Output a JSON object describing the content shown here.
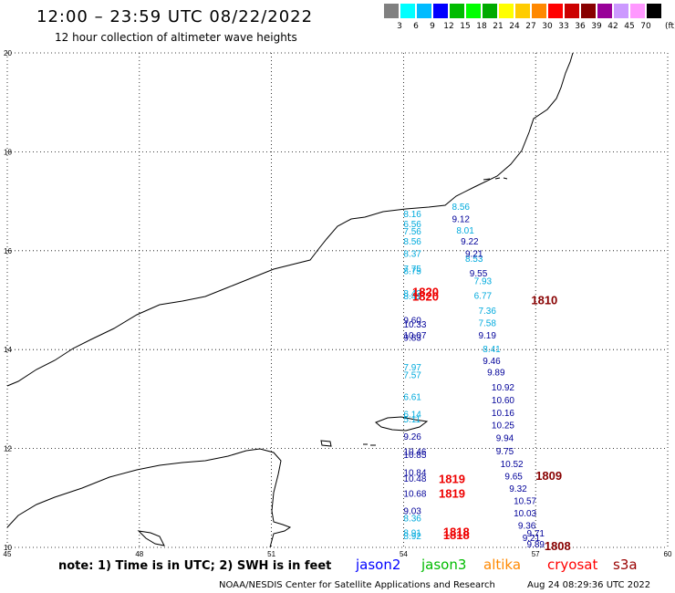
{
  "header": {
    "title": "12:00 – 23:59 UTC 08/22/2022",
    "subtitle": "12 hour collection of altimeter wave heights"
  },
  "colorbar": {
    "colors": [
      "#808080",
      "#00ffff",
      "#00bbff",
      "#0000ff",
      "#00bb00",
      "#00ff00",
      "#00aa00",
      "#ffff00",
      "#ffcc00",
      "#ff8800",
      "#ff0000",
      "#cc0000",
      "#880000",
      "#990099",
      "#cc99ff",
      "#ff99ff",
      "#000000"
    ],
    "labels": [
      "3",
      "6",
      "9",
      "12",
      "15",
      "18",
      "21",
      "24",
      "27",
      "30",
      "33",
      "36",
      "39",
      "42",
      "45",
      "70"
    ],
    "unit": "(ft)"
  },
  "map": {
    "lon_range": [
      45,
      60
    ],
    "lat_range": [
      10,
      20
    ],
    "x_ticks": [
      "45",
      "48",
      "51",
      "54",
      "57",
      "60"
    ],
    "y_ticks": [
      "10",
      "12",
      "14",
      "16",
      "18",
      "20"
    ],
    "grid": true
  },
  "tracks": {
    "jason3_a": {
      "color": "#00aadd",
      "points": [
        {
          "lon": 54.0,
          "lat": 16.75,
          "v": "8.16"
        },
        {
          "lon": 54.0,
          "lat": 16.55,
          "v": "6.56"
        },
        {
          "lon": 54.0,
          "lat": 16.4,
          "v": "7.56"
        },
        {
          "lon": 54.0,
          "lat": 16.2,
          "v": "8.56"
        },
        {
          "lon": 54.0,
          "lat": 15.95,
          "v": "8.37"
        },
        {
          "lon": 54.0,
          "lat": 15.65,
          "v": "7.75"
        },
        {
          "lon": 54.0,
          "lat": 15.6,
          "v": "8.75"
        },
        {
          "lon": 54.0,
          "lat": 15.15,
          "v": "8.42"
        },
        {
          "lon": 54.0,
          "lat": 15.09,
          "v": "8.41"
        },
        {
          "lon": 54.0,
          "lat": 13.65,
          "v": "7.97"
        },
        {
          "lon": 54.0,
          "lat": 13.5,
          "v": "7.57"
        },
        {
          "lon": 54.0,
          "lat": 13.05,
          "v": "6.61"
        },
        {
          "lon": 54.0,
          "lat": 12.7,
          "v": "6.14"
        },
        {
          "lon": 54.0,
          "lat": 12.6,
          "v": "5.11"
        },
        {
          "lon": 54.0,
          "lat": 10.6,
          "v": "8.36"
        },
        {
          "lon": 54.0,
          "lat": 10.3,
          "v": "8.91"
        },
        {
          "lon": 54.0,
          "lat": 10.24,
          "v": "8.92"
        }
      ]
    },
    "jason2_a": {
      "color": "#000099",
      "points": [
        {
          "lon": 54.0,
          "lat": 14.6,
          "v": "9.60"
        },
        {
          "lon": 54.0,
          "lat": 14.52,
          "v": "10.33"
        },
        {
          "lon": 54.0,
          "lat": 14.3,
          "v": "10.07"
        },
        {
          "lon": 54.0,
          "lat": 14.25,
          "v": "9.83"
        },
        {
          "lon": 54.0,
          "lat": 12.25,
          "v": "9.26"
        },
        {
          "lon": 54.0,
          "lat": 11.95,
          "v": "10.46"
        },
        {
          "lon": 54.0,
          "lat": 11.88,
          "v": "10.85"
        },
        {
          "lon": 54.0,
          "lat": 11.52,
          "v": "10.84"
        },
        {
          "lon": 54.0,
          "lat": 11.4,
          "v": "10.48"
        },
        {
          "lon": 54.0,
          "lat": 11.1,
          "v": "10.68"
        },
        {
          "lon": 54.0,
          "lat": 10.75,
          "v": "9.03"
        }
      ]
    },
    "jason3_b": {
      "color": "#00aadd",
      "points": [
        {
          "lon": 55.1,
          "lat": 16.9,
          "v": "8.56"
        },
        {
          "lon": 55.2,
          "lat": 16.42,
          "v": "8.01"
        },
        {
          "lon": 55.4,
          "lat": 15.85,
          "v": "8.53"
        },
        {
          "lon": 55.6,
          "lat": 15.4,
          "v": "7.93"
        },
        {
          "lon": 55.6,
          "lat": 15.1,
          "v": "6.77"
        },
        {
          "lon": 55.7,
          "lat": 14.8,
          "v": "7.36"
        },
        {
          "lon": 55.7,
          "lat": 14.55,
          "v": "7.58"
        },
        {
          "lon": 55.8,
          "lat": 14.02,
          "v": "8.41"
        }
      ]
    },
    "jason2_b": {
      "color": "#000099",
      "points": [
        {
          "lon": 55.1,
          "lat": 16.65,
          "v": "9.12"
        },
        {
          "lon": 55.3,
          "lat": 16.2,
          "v": "9.22"
        },
        {
          "lon": 55.4,
          "lat": 15.95,
          "v": "9.21"
        },
        {
          "lon": 55.5,
          "lat": 15.55,
          "v": "9.55"
        },
        {
          "lon": 55.7,
          "lat": 14.3,
          "v": "9.19"
        },
        {
          "lon": 55.8,
          "lat": 13.78,
          "v": "9.46"
        },
        {
          "lon": 55.9,
          "lat": 13.55,
          "v": "9.89"
        },
        {
          "lon": 56.0,
          "lat": 13.25,
          "v": "10.92"
        },
        {
          "lon": 56.0,
          "lat": 12.99,
          "v": "10.60"
        },
        {
          "lon": 56.0,
          "lat": 12.73,
          "v": "10.16"
        },
        {
          "lon": 56.0,
          "lat": 12.48,
          "v": "10.25"
        },
        {
          "lon": 56.1,
          "lat": 12.22,
          "v": "9.94"
        },
        {
          "lon": 56.1,
          "lat": 11.96,
          "v": "9.75"
        },
        {
          "lon": 56.2,
          "lat": 11.7,
          "v": "10.52"
        },
        {
          "lon": 56.3,
          "lat": 11.45,
          "v": "9.65"
        },
        {
          "lon": 56.4,
          "lat": 11.2,
          "v": "9.32"
        },
        {
          "lon": 56.5,
          "lat": 10.95,
          "v": "10.57"
        },
        {
          "lon": 56.5,
          "lat": 10.7,
          "v": "10.03"
        },
        {
          "lon": 56.6,
          "lat": 10.45,
          "v": "9.36"
        },
        {
          "lon": 56.7,
          "lat": 10.2,
          "v": "9.21"
        },
        {
          "lon": 56.8,
          "lat": 9.95,
          "v": "9.71"
        },
        {
          "lon": 56.8,
          "lat": 9.7,
          "v": "9.89"
        }
      ]
    }
  },
  "times_red": [
    {
      "lon": 54.2,
      "lat": 15.16,
      "v": "1820"
    },
    {
      "lon": 54.2,
      "lat": 15.06,
      "v": "1820"
    },
    {
      "lon": 54.8,
      "lat": 11.37,
      "v": "1819"
    },
    {
      "lon": 54.8,
      "lat": 11.08,
      "v": "1819"
    },
    {
      "lon": 54.9,
      "lat": 10.3,
      "v": "1818"
    },
    {
      "lon": 54.9,
      "lat": 10.24,
      "v": "1818"
    }
  ],
  "times_darkred": [
    {
      "lon": 56.9,
      "lat": 14.99,
      "v": "1810"
    },
    {
      "lon": 57.0,
      "lat": 11.44,
      "v": "1809"
    },
    {
      "lon": 57.2,
      "lat": 10.02,
      "v": "1808"
    }
  ],
  "footer": {
    "note": "note: 1) Time is in UTC; 2) SWH is in feet",
    "legend": [
      {
        "label": "jason2",
        "color": "#0000ff"
      },
      {
        "label": "jason3",
        "color": "#00bb00"
      },
      {
        "label": "altika",
        "color": "#ff8800"
      },
      {
        "label": "cryosat",
        "color": "#ff0000"
      },
      {
        "label": "s3a",
        "color": "#990000"
      }
    ],
    "credit": "NOAA/NESDIS Center for Satellite Applications and Research",
    "timestamp": "Aug 24 08:29:36 UTC 2022"
  }
}
